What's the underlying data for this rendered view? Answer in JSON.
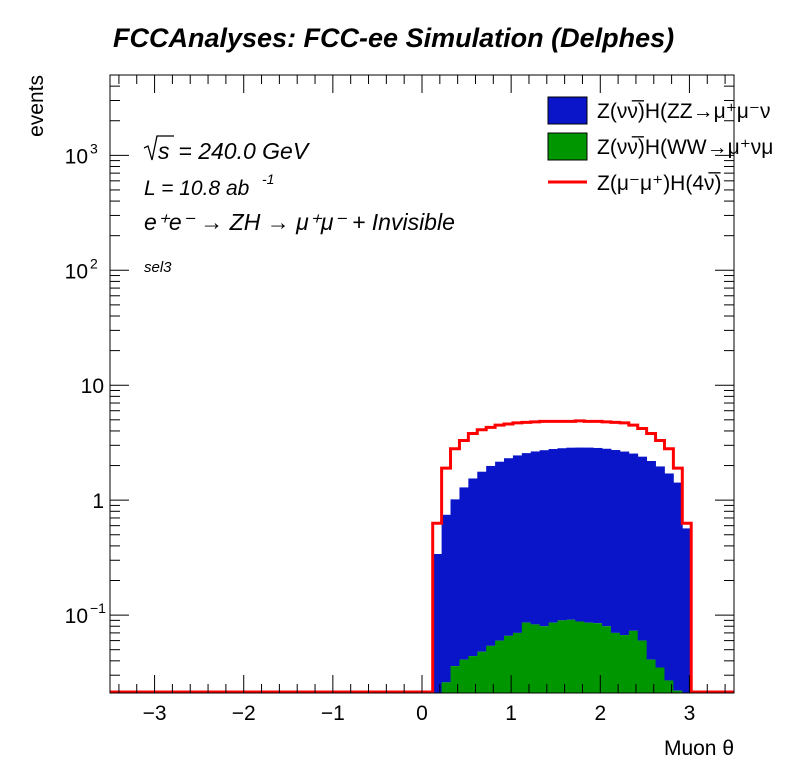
{
  "chart_data": {
    "type": "bar",
    "title": "FCCAnalyses: FCC-ee Simulation (Delphes)",
    "xlabel": "Muon θ",
    "ylabel": "events",
    "yscale": "log",
    "xlim": [
      -3.5,
      3.5
    ],
    "ylim": [
      0.021,
      5000
    ],
    "x_ticks": [
      "−3",
      "−2",
      "−1",
      "0",
      "1",
      "2",
      "3"
    ],
    "y_ticks": [
      {
        "value": 0.1,
        "label_base": "10",
        "label_exp": "−1"
      },
      {
        "value": 1,
        "label_base": "1",
        "label_exp": ""
      },
      {
        "value": 10,
        "label_base": "10",
        "label_exp": ""
      },
      {
        "value": 100,
        "label_base": "10",
        "label_exp": "2"
      },
      {
        "value": 1000,
        "label_base": "10",
        "label_exp": "3"
      }
    ],
    "annotations": {
      "sqrt_s": "s",
      "energy": " = 240.0 GeV",
      "lumi": "L = 10.8 ab",
      "lumi_exp": "-1",
      "process": "e⁺e⁻ → ZH → μ⁺μ⁻ + Invisible",
      "selection": "sel3"
    },
    "legend": {
      "placement": "top-right",
      "entries": [
        {
          "label": "Z(νν̅)H(ZZ→μ⁺μ⁻ν",
          "style": "fill",
          "color": "#0a14c8"
        },
        {
          "label": "Z(νν̅)H(WW→μ⁺νμ",
          "style": "fill",
          "color": "#009600"
        },
        {
          "label": "Z(μ⁻μ⁺)H(4ν̅)",
          "style": "line",
          "color": "#ff0000"
        }
      ]
    },
    "bin_start": 0.12,
    "bin_width": 0.1,
    "series": [
      {
        "name": "Z(νν̅)H(ZZ→μ⁺μ⁻ν",
        "style": "stacked-fill",
        "color": "#0a14c8",
        "values": [
          0.32,
          0.72,
          0.98,
          1.25,
          1.5,
          1.72,
          1.93,
          2.1,
          2.25,
          2.38,
          2.48,
          2.57,
          2.64,
          2.7,
          2.74,
          2.77,
          2.78,
          2.78,
          2.76,
          2.72,
          2.66,
          2.58,
          2.47,
          2.33,
          2.15,
          1.93,
          1.68,
          1.4,
          0.55
        ]
      },
      {
        "name": "Z(νν̅)H(WW→μ⁺νμ",
        "style": "stacked-fill",
        "color": "#009600",
        "values": [
          0.02,
          0.026,
          0.036,
          0.041,
          0.044,
          0.048,
          0.054,
          0.06,
          0.066,
          0.07,
          0.086,
          0.083,
          0.08,
          0.086,
          0.09,
          0.091,
          0.088,
          0.086,
          0.085,
          0.08,
          0.07,
          0.067,
          0.073,
          0.06,
          0.041,
          0.035,
          0.027,
          0.022,
          0.018
        ]
      },
      {
        "name": "Z(μ⁻μ⁺)H(4ν̅)",
        "style": "step-line",
        "color": "#ff0000",
        "values": [
          0.63,
          1.9,
          2.8,
          3.3,
          3.8,
          4.1,
          4.3,
          4.5,
          4.6,
          4.7,
          4.75,
          4.8,
          4.85,
          4.85,
          4.85,
          4.85,
          4.9,
          4.85,
          4.85,
          4.8,
          4.75,
          4.7,
          4.5,
          4.2,
          3.8,
          3.3,
          2.8,
          1.9,
          0.63
        ]
      }
    ]
  }
}
